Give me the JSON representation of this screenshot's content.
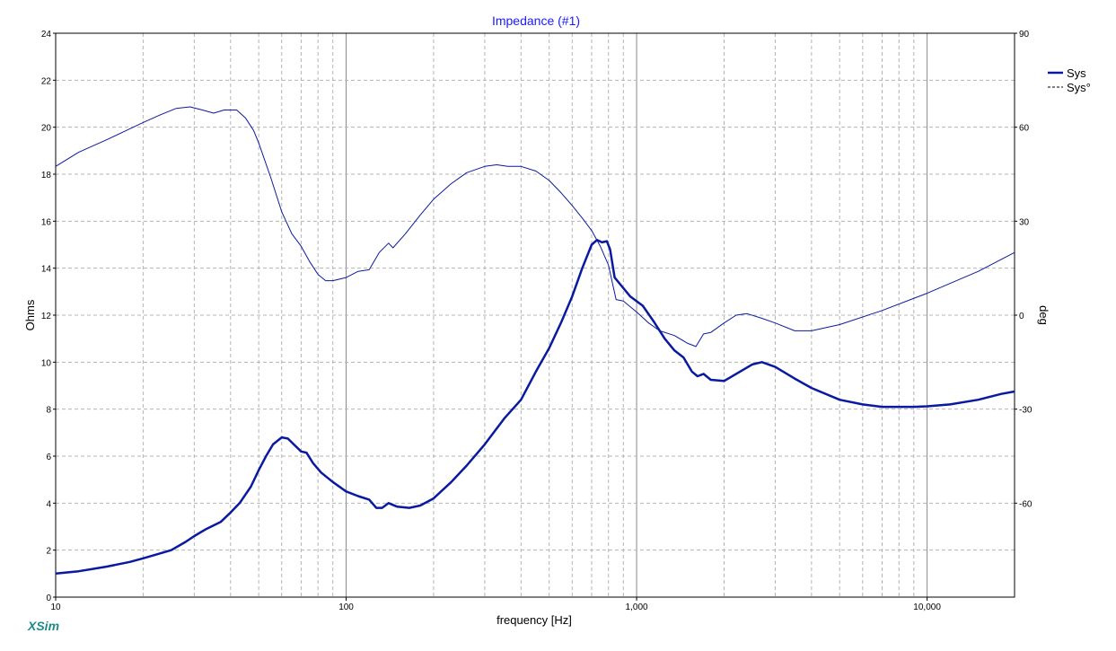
{
  "app": {
    "name": "XSim"
  },
  "legend": [
    {
      "label": "Sys",
      "style": "solid"
    },
    {
      "label": "Sys°",
      "style": "dashed"
    }
  ],
  "chart_data": {
    "type": "line",
    "title": "Impedance (#1)",
    "xlabel": "frequency [Hz]",
    "ylabel": "Ohms",
    "y2label": "deg",
    "xscale": "log",
    "xlim": [
      10,
      20000
    ],
    "ylim": [
      0,
      24
    ],
    "y2lim": [
      -90,
      90
    ],
    "x_tick_labels": [
      {
        "value": 10,
        "label": "10"
      },
      {
        "value": 100,
        "label": "100"
      },
      {
        "value": 1000,
        "label": "1,000"
      },
      {
        "value": 10000,
        "label": "10,000"
      }
    ],
    "y_ticks": [
      0,
      2,
      4,
      6,
      8,
      10,
      12,
      14,
      16,
      18,
      20,
      22,
      24
    ],
    "y2_ticks": [
      -60,
      -30,
      0,
      30,
      60,
      90
    ],
    "grid": true,
    "legend_position": "right",
    "colors": {
      "line": "#0a1aa0",
      "title": "#1a1aff",
      "watermark": "#1e8a8a",
      "grid": "#b4b4b4"
    },
    "series": [
      {
        "name": "Sys",
        "axis": "left",
        "style": "solid",
        "points": [
          [
            10,
            1.0
          ],
          [
            12,
            1.1
          ],
          [
            15,
            1.3
          ],
          [
            18,
            1.5
          ],
          [
            20,
            1.65
          ],
          [
            22,
            1.8
          ],
          [
            25,
            2.0
          ],
          [
            28,
            2.35
          ],
          [
            30,
            2.6
          ],
          [
            33,
            2.9
          ],
          [
            37,
            3.2
          ],
          [
            40,
            3.6
          ],
          [
            43,
            4.0
          ],
          [
            47,
            4.7
          ],
          [
            50,
            5.4
          ],
          [
            53,
            6.0
          ],
          [
            56,
            6.5
          ],
          [
            60,
            6.8
          ],
          [
            63,
            6.75
          ],
          [
            66,
            6.5
          ],
          [
            70,
            6.2
          ],
          [
            73,
            6.15
          ],
          [
            77,
            5.7
          ],
          [
            82,
            5.3
          ],
          [
            90,
            4.9
          ],
          [
            100,
            4.5
          ],
          [
            110,
            4.3
          ],
          [
            120,
            4.15
          ],
          [
            127,
            3.8
          ],
          [
            133,
            3.8
          ],
          [
            140,
            4.0
          ],
          [
            150,
            3.85
          ],
          [
            165,
            3.8
          ],
          [
            180,
            3.9
          ],
          [
            200,
            4.2
          ],
          [
            230,
            4.9
          ],
          [
            260,
            5.6
          ],
          [
            300,
            6.5
          ],
          [
            350,
            7.6
          ],
          [
            400,
            8.4
          ],
          [
            450,
            9.6
          ],
          [
            500,
            10.6
          ],
          [
            550,
            11.7
          ],
          [
            600,
            12.8
          ],
          [
            650,
            14.0
          ],
          [
            700,
            15.0
          ],
          [
            730,
            15.2
          ],
          [
            760,
            15.1
          ],
          [
            790,
            15.15
          ],
          [
            810,
            14.8
          ],
          [
            840,
            13.6
          ],
          [
            880,
            13.3
          ],
          [
            950,
            12.8
          ],
          [
            1050,
            12.4
          ],
          [
            1150,
            11.7
          ],
          [
            1250,
            11.0
          ],
          [
            1350,
            10.5
          ],
          [
            1450,
            10.2
          ],
          [
            1550,
            9.6
          ],
          [
            1620,
            9.4
          ],
          [
            1700,
            9.5
          ],
          [
            1800,
            9.25
          ],
          [
            2000,
            9.2
          ],
          [
            2200,
            9.5
          ],
          [
            2500,
            9.9
          ],
          [
            2700,
            10.0
          ],
          [
            3000,
            9.8
          ],
          [
            3500,
            9.3
          ],
          [
            4000,
            8.9
          ],
          [
            5000,
            8.4
          ],
          [
            6000,
            8.2
          ],
          [
            7000,
            8.1
          ],
          [
            8000,
            8.1
          ],
          [
            9000,
            8.1
          ],
          [
            10000,
            8.12
          ],
          [
            12000,
            8.2
          ],
          [
            15000,
            8.4
          ],
          [
            18000,
            8.65
          ],
          [
            20000,
            8.75
          ]
        ]
      },
      {
        "name": "Sys°",
        "axis": "right",
        "style": "dashed",
        "points": [
          [
            10,
            47.5
          ],
          [
            12,
            52
          ],
          [
            15,
            56
          ],
          [
            18,
            59.5
          ],
          [
            20,
            61.5
          ],
          [
            23,
            64
          ],
          [
            26,
            66
          ],
          [
            29,
            66.5
          ],
          [
            32,
            65.5
          ],
          [
            35,
            64.5
          ],
          [
            38,
            65.5
          ],
          [
            42,
            65.5
          ],
          [
            45,
            63
          ],
          [
            48,
            59
          ],
          [
            50,
            55
          ],
          [
            55,
            44
          ],
          [
            60,
            33
          ],
          [
            65,
            26
          ],
          [
            70,
            22
          ],
          [
            75,
            17
          ],
          [
            80,
            13
          ],
          [
            85,
            11
          ],
          [
            90,
            11
          ],
          [
            100,
            12
          ],
          [
            110,
            14
          ],
          [
            120,
            14.5
          ],
          [
            130,
            20
          ],
          [
            140,
            23
          ],
          [
            145,
            21.5
          ],
          [
            160,
            26
          ],
          [
            180,
            32
          ],
          [
            200,
            37
          ],
          [
            230,
            42
          ],
          [
            260,
            45.5
          ],
          [
            300,
            47.5
          ],
          [
            330,
            48
          ],
          [
            360,
            47.5
          ],
          [
            400,
            47.5
          ],
          [
            450,
            46
          ],
          [
            500,
            43
          ],
          [
            550,
            39
          ],
          [
            600,
            35
          ],
          [
            650,
            31
          ],
          [
            700,
            27
          ],
          [
            750,
            22
          ],
          [
            800,
            16
          ],
          [
            850,
            5
          ],
          [
            900,
            4.5
          ],
          [
            1000,
            1
          ],
          [
            1100,
            -2.5
          ],
          [
            1200,
            -5
          ],
          [
            1350,
            -6.5
          ],
          [
            1500,
            -9
          ],
          [
            1600,
            -10
          ],
          [
            1700,
            -6
          ],
          [
            1800,
            -5.5
          ],
          [
            2000,
            -2.5
          ],
          [
            2200,
            0
          ],
          [
            2400,
            0.5
          ],
          [
            2700,
            -1
          ],
          [
            3000,
            -2.5
          ],
          [
            3500,
            -5
          ],
          [
            4000,
            -5
          ],
          [
            5000,
            -3
          ],
          [
            7000,
            1.5
          ],
          [
            10000,
            7
          ],
          [
            15000,
            14
          ],
          [
            20000,
            20
          ]
        ]
      }
    ]
  }
}
